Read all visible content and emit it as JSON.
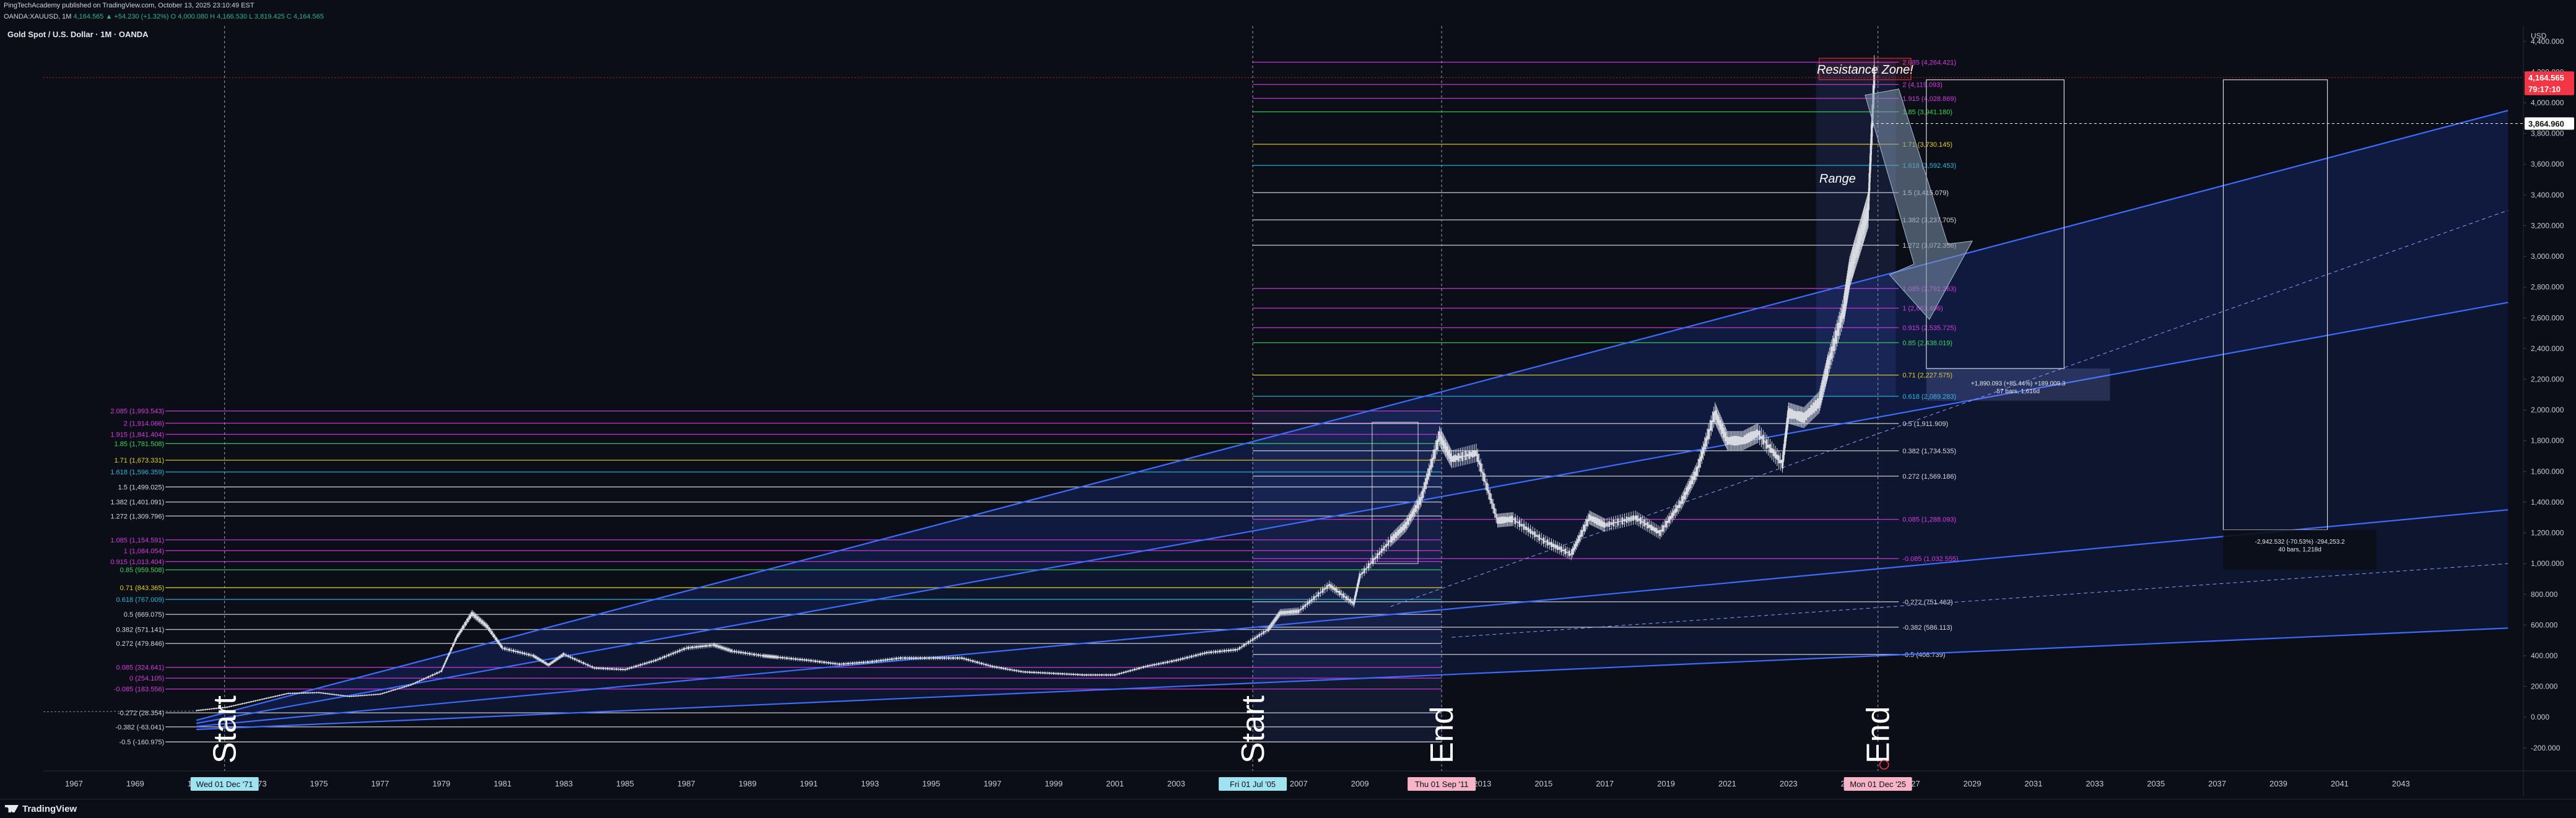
{
  "header": {
    "publisher_line": "PingTechAcademy published on TradingView.com, October 13, 2025 23:10:49 EST",
    "quote_prefix": "OANDA:XAUUSD, 1M",
    "quote_values": "4,164.565 ▲ +54.230 (+1.32%)",
    "ohlc": "O 4,000.080  H 4,166.530  L 3,819.425  C 4,164.565"
  },
  "chart_title": "Gold Spot / U.S. Dollar · 1M · OANDA",
  "footer": {
    "brand": "TradingView"
  },
  "colors": {
    "background": "#0b0e17",
    "channel_line": "#3d6bff",
    "candle": "#d8dbe2",
    "magenta": "#d43be0",
    "yellow": "#e6d21c",
    "cyan": "#27b9e0",
    "green": "#38d65a",
    "white": "#d7d9de",
    "price_badge": "#f23645"
  },
  "chart_data": {
    "type": "line",
    "title": "Gold Spot / U.S. Dollar · 1M · OANDA",
    "xlabel": "",
    "ylabel": "USD",
    "ylim": [
      -350,
      4500
    ],
    "xlim": [
      1966,
      2047
    ],
    "y_ticks": [
      "4,400.000",
      "4,200.000",
      "4,000.000",
      "3,800.000",
      "3,600.000",
      "3,400.000",
      "3,200.000",
      "3,000.000",
      "2,800.000",
      "2,600.000",
      "2,400.000",
      "2,200.000",
      "2,000.000",
      "1,800.000",
      "1,600.000",
      "1,400.000",
      "1,200.000",
      "1,000.000",
      "800.000",
      "600.000",
      "400.000",
      "200.000",
      "0.000",
      "-200.000"
    ],
    "y_tick_values": [
      4400,
      4200,
      4000,
      3800,
      3600,
      3400,
      3200,
      3000,
      2800,
      2600,
      2400,
      2200,
      2000,
      1800,
      1600,
      1400,
      1200,
      1000,
      800,
      600,
      400,
      200,
      0,
      -200
    ],
    "x_ticks": [
      "1967",
      "1969",
      "1971",
      "1973",
      "1975",
      "1977",
      "1979",
      "1981",
      "1983",
      "1985",
      "1987",
      "1989",
      "1991",
      "1993",
      "1995",
      "1997",
      "1999",
      "2001",
      "2003",
      "2005",
      "2007",
      "2009",
      "2011",
      "2013",
      "2015",
      "2017",
      "2019",
      "2021",
      "2023",
      "2025",
      "2027",
      "2029",
      "2031",
      "2033",
      "2035",
      "2037",
      "2039",
      "2041",
      "2043"
    ],
    "series": [
      {
        "name": "XAUUSD",
        "x": [
          1971.0,
          1972.0,
          1973.0,
          1974.0,
          1975.0,
          1976.0,
          1977.0,
          1978.0,
          1979.0,
          1979.5,
          1980.0,
          1980.5,
          1981.0,
          1982.0,
          1982.5,
          1983.0,
          1984.0,
          1985.0,
          1986.0,
          1987.0,
          1987.9,
          1988.5,
          1989.5,
          1990.0,
          1991.0,
          1992.0,
          1993.0,
          1994.0,
          1995.0,
          1996.0,
          1997.0,
          1998.0,
          1999.0,
          2000.0,
          2001.0,
          2002.0,
          2003.0,
          2004.0,
          2005.0,
          2006.0,
          2006.4,
          2007.0,
          2008.0,
          2008.8,
          2009.0,
          2010.0,
          2010.5,
          2011.0,
          2011.6,
          2012.0,
          2012.8,
          2013.5,
          2014.0,
          2015.0,
          2015.9,
          2016.5,
          2017.0,
          2018.0,
          2018.8,
          2019.5,
          2020.0,
          2020.6,
          2021.0,
          2021.5,
          2022.0,
          2022.8,
          2023.0,
          2023.5,
          2024.0,
          2024.3,
          2024.8,
          2025.0,
          2025.3,
          2025.6,
          2025.8
        ],
        "values": [
          43,
          65,
          110,
          155,
          160,
          135,
          150,
          210,
          300,
          520,
          675,
          590,
          450,
          400,
          340,
          410,
          320,
          310,
          370,
          450,
          470,
          430,
          400,
          390,
          370,
          345,
          360,
          385,
          385,
          385,
          330,
          295,
          285,
          275,
          275,
          330,
          370,
          420,
          440,
          570,
          680,
          690,
          860,
          740,
          920,
          1150,
          1250,
          1420,
          1830,
          1680,
          1720,
          1280,
          1290,
          1150,
          1060,
          1300,
          1250,
          1300,
          1200,
          1400,
          1600,
          1980,
          1800,
          1800,
          1850,
          1650,
          1980,
          1950,
          2050,
          2300,
          2650,
          2900,
          3100,
          3300,
          4164
        ]
      }
    ],
    "fib_levels_left": [
      {
        "label": "2.085 (1,993.543)",
        "value": 1993.5,
        "color": "magenta"
      },
      {
        "label": "2 (1,914.066)",
        "value": 1914.1,
        "color": "magenta"
      },
      {
        "label": "1.915 (1,841.404)",
        "value": 1841.4,
        "color": "magenta"
      },
      {
        "label": "1.85 (1,781.508)",
        "value": 1781.5,
        "color": "green"
      },
      {
        "label": "1.71 (1,673.331)",
        "value": 1673.3,
        "color": "yellow"
      },
      {
        "label": "1.618 (1,596.359)",
        "value": 1596.4,
        "color": "cyan"
      },
      {
        "label": "1.5 (1,499.025)",
        "value": 1499.0,
        "color": "white"
      },
      {
        "label": "1.382 (1,401.091)",
        "value": 1401.1,
        "color": "white"
      },
      {
        "label": "1.272 (1,309.796)",
        "value": 1309.8,
        "color": "white"
      },
      {
        "label": "1.085 (1,154.591)",
        "value": 1154.6,
        "color": "magenta"
      },
      {
        "label": "1 (1,084.054)",
        "value": 1084.1,
        "color": "magenta"
      },
      {
        "label": "0.915 (1,013.404)",
        "value": 1013.4,
        "color": "magenta"
      },
      {
        "label": "0.85 (959.508)",
        "value": 959.5,
        "color": "green"
      },
      {
        "label": "0.71 (843.365)",
        "value": 843.4,
        "color": "yellow"
      },
      {
        "label": "0.618 (767.009)",
        "value": 767.0,
        "color": "cyan"
      },
      {
        "label": "0.5 (669.075)",
        "value": 669.1,
        "color": "white"
      },
      {
        "label": "0.382 (571.141)",
        "value": 571.1,
        "color": "white"
      },
      {
        "label": "0.272 (479.846)",
        "value": 479.8,
        "color": "white"
      },
      {
        "label": "0.085 (324.641)",
        "value": 324.6,
        "color": "magenta"
      },
      {
        "label": "0 (254.105)",
        "value": 254.1,
        "color": "magenta"
      },
      {
        "label": "-0.085 (183.556)",
        "value": 183.6,
        "color": "magenta"
      },
      {
        "label": "-0.272 (28.354)",
        "value": 28.4,
        "color": "white"
      },
      {
        "label": "-0.382 (-63.041)",
        "value": -63.0,
        "color": "white"
      },
      {
        "label": "-0.5 (-160.975)",
        "value": -161.0,
        "color": "white"
      }
    ],
    "fib_levels_right": [
      {
        "label": "2.085 (4,264.421)",
        "value": 4264.4,
        "color": "magenta"
      },
      {
        "label": "2 (4,119.093)",
        "value": 4119.1,
        "color": "magenta"
      },
      {
        "label": "1.915 (4,028.869)",
        "value": 4028.9,
        "color": "magenta"
      },
      {
        "label": "1.85 (3,941.180)",
        "value": 3941.2,
        "color": "green"
      },
      {
        "label": "1.71 (3,730.145)",
        "value": 3730.1,
        "color": "yellow"
      },
      {
        "label": "1.618 (3,592.453)",
        "value": 3592.5,
        "color": "cyan"
      },
      {
        "label": "1.5 (3,415.079)",
        "value": 3415.1,
        "color": "white"
      },
      {
        "label": "1.382 (3,237.705)",
        "value": 3237.7,
        "color": "white"
      },
      {
        "label": "1.272 (3,072.356)",
        "value": 3072.4,
        "color": "white"
      },
      {
        "label": "1.085 (2,791.263)",
        "value": 2791.3,
        "color": "magenta"
      },
      {
        "label": "1 (2,663.496)",
        "value": 2663.5,
        "color": "magenta"
      },
      {
        "label": "0.915 (2,535.725)",
        "value": 2535.7,
        "color": "magenta"
      },
      {
        "label": "0.85 (2,438.019)",
        "value": 2438.0,
        "color": "green"
      },
      {
        "label": "0.71 (2,227.575)",
        "value": 2227.6,
        "color": "yellow"
      },
      {
        "label": "0.618 (2,089.283)",
        "value": 2089.3,
        "color": "cyan"
      },
      {
        "label": "0.5 (1,911.909)",
        "value": 1911.9,
        "color": "white"
      },
      {
        "label": "0.382 (1,734.535)",
        "value": 1734.5,
        "color": "white"
      },
      {
        "label": "0.272 (1,569.186)",
        "value": 1569.2,
        "color": "white"
      },
      {
        "label": "0.085 (1,288.093)",
        "value": 1288.1,
        "color": "magenta"
      },
      {
        "label": "-0.085 (1,032.555)",
        "value": 1032.6,
        "color": "magenta"
      },
      {
        "label": "-0.272 (751.462)",
        "value": 751.5,
        "color": "white"
      },
      {
        "label": "-0.382 (586.113)",
        "value": 586.1,
        "color": "white"
      },
      {
        "label": "-0.5 (408.739)",
        "value": 408.7,
        "color": "white"
      }
    ],
    "channel": [
      {
        "x1": 1971.0,
        "y1": -20,
        "x2": 2046.5,
        "y2": 3950
      },
      {
        "x1": 1971.0,
        "y1": -40,
        "x2": 2046.5,
        "y2": 2700
      },
      {
        "x1": 1971.0,
        "y1": -60,
        "x2": 2046.5,
        "y2": 1350
      },
      {
        "x1": 1971.0,
        "y1": -80,
        "x2": 2046.5,
        "y2": 580
      }
    ],
    "annotations": {
      "start_1": "Start",
      "start_2": "Start",
      "end_1": "End",
      "end_2": "End",
      "range": "Range",
      "resistance": "Resistance Zone!",
      "measure_1": "+1,890.093 (+85.44%) +189,009.3",
      "measure_1b": "57 bars, 1,616d",
      "measure_2": "-2,942.532 (-70.53%) -294,253.2",
      "measure_2b": "40 bars, 1,218d"
    },
    "date_labels": [
      {
        "label": "Wed 01 Dec '71",
        "x": 1971.92
      },
      {
        "label": "Fri 01 Jul '05",
        "x": 2005.5
      },
      {
        "label": "Thu 01 Sep '11",
        "x": 2011.67
      },
      {
        "label": "Mon 01 Dec '25",
        "x": 2025.92
      }
    ],
    "price_badges": [
      {
        "label": "4,164.565",
        "value": 4164.6,
        "kind": "current"
      },
      {
        "label": "79:17:10",
        "value": 4090,
        "kind": "timer"
      },
      {
        "label": "3,864.960",
        "value": 3865,
        "kind": "crosshair"
      }
    ],
    "axis_unit": "USD"
  }
}
